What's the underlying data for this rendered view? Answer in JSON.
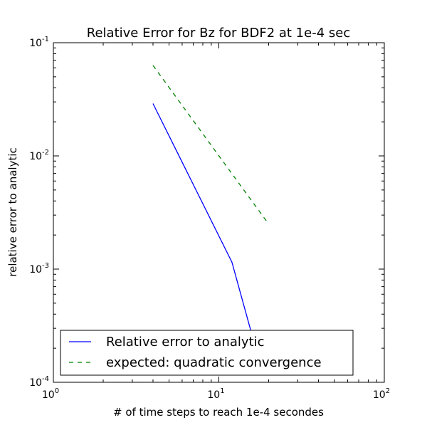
{
  "chart_data": {
    "type": "line",
    "title": "Relative Error for Bz for BDF2 at 1e-4 sec",
    "xlabel": "# of time steps to reach 1e-4 secondes",
    "ylabel": "relative error to analytic",
    "xscale": "log",
    "yscale": "log",
    "xlim": [
      1,
      100
    ],
    "ylim": [
      0.0001,
      0.1
    ],
    "x_ticks": [
      {
        "base": "10",
        "exp": "0"
      },
      {
        "base": "10",
        "exp": "1"
      },
      {
        "base": "10",
        "exp": "2"
      }
    ],
    "y_ticks": [
      {
        "base": "10",
        "exp": "-4"
      },
      {
        "base": "10",
        "exp": "-3"
      },
      {
        "base": "10",
        "exp": "-2"
      },
      {
        "base": "10",
        "exp": "-1"
      }
    ],
    "grid": false,
    "legend_position": "lower-left",
    "series": [
      {
        "name": "Relative error to analytic",
        "color": "#0000ff",
        "style": "solid",
        "x": [
          4,
          12,
          16
        ],
        "y": [
          0.029,
          0.00115,
          0.00025
        ]
      },
      {
        "name": "expected: quadratic convergence",
        "color": "#008000",
        "style": "dashed",
        "x": [
          4,
          20
        ],
        "y": [
          0.063,
          0.0025
        ]
      }
    ]
  }
}
